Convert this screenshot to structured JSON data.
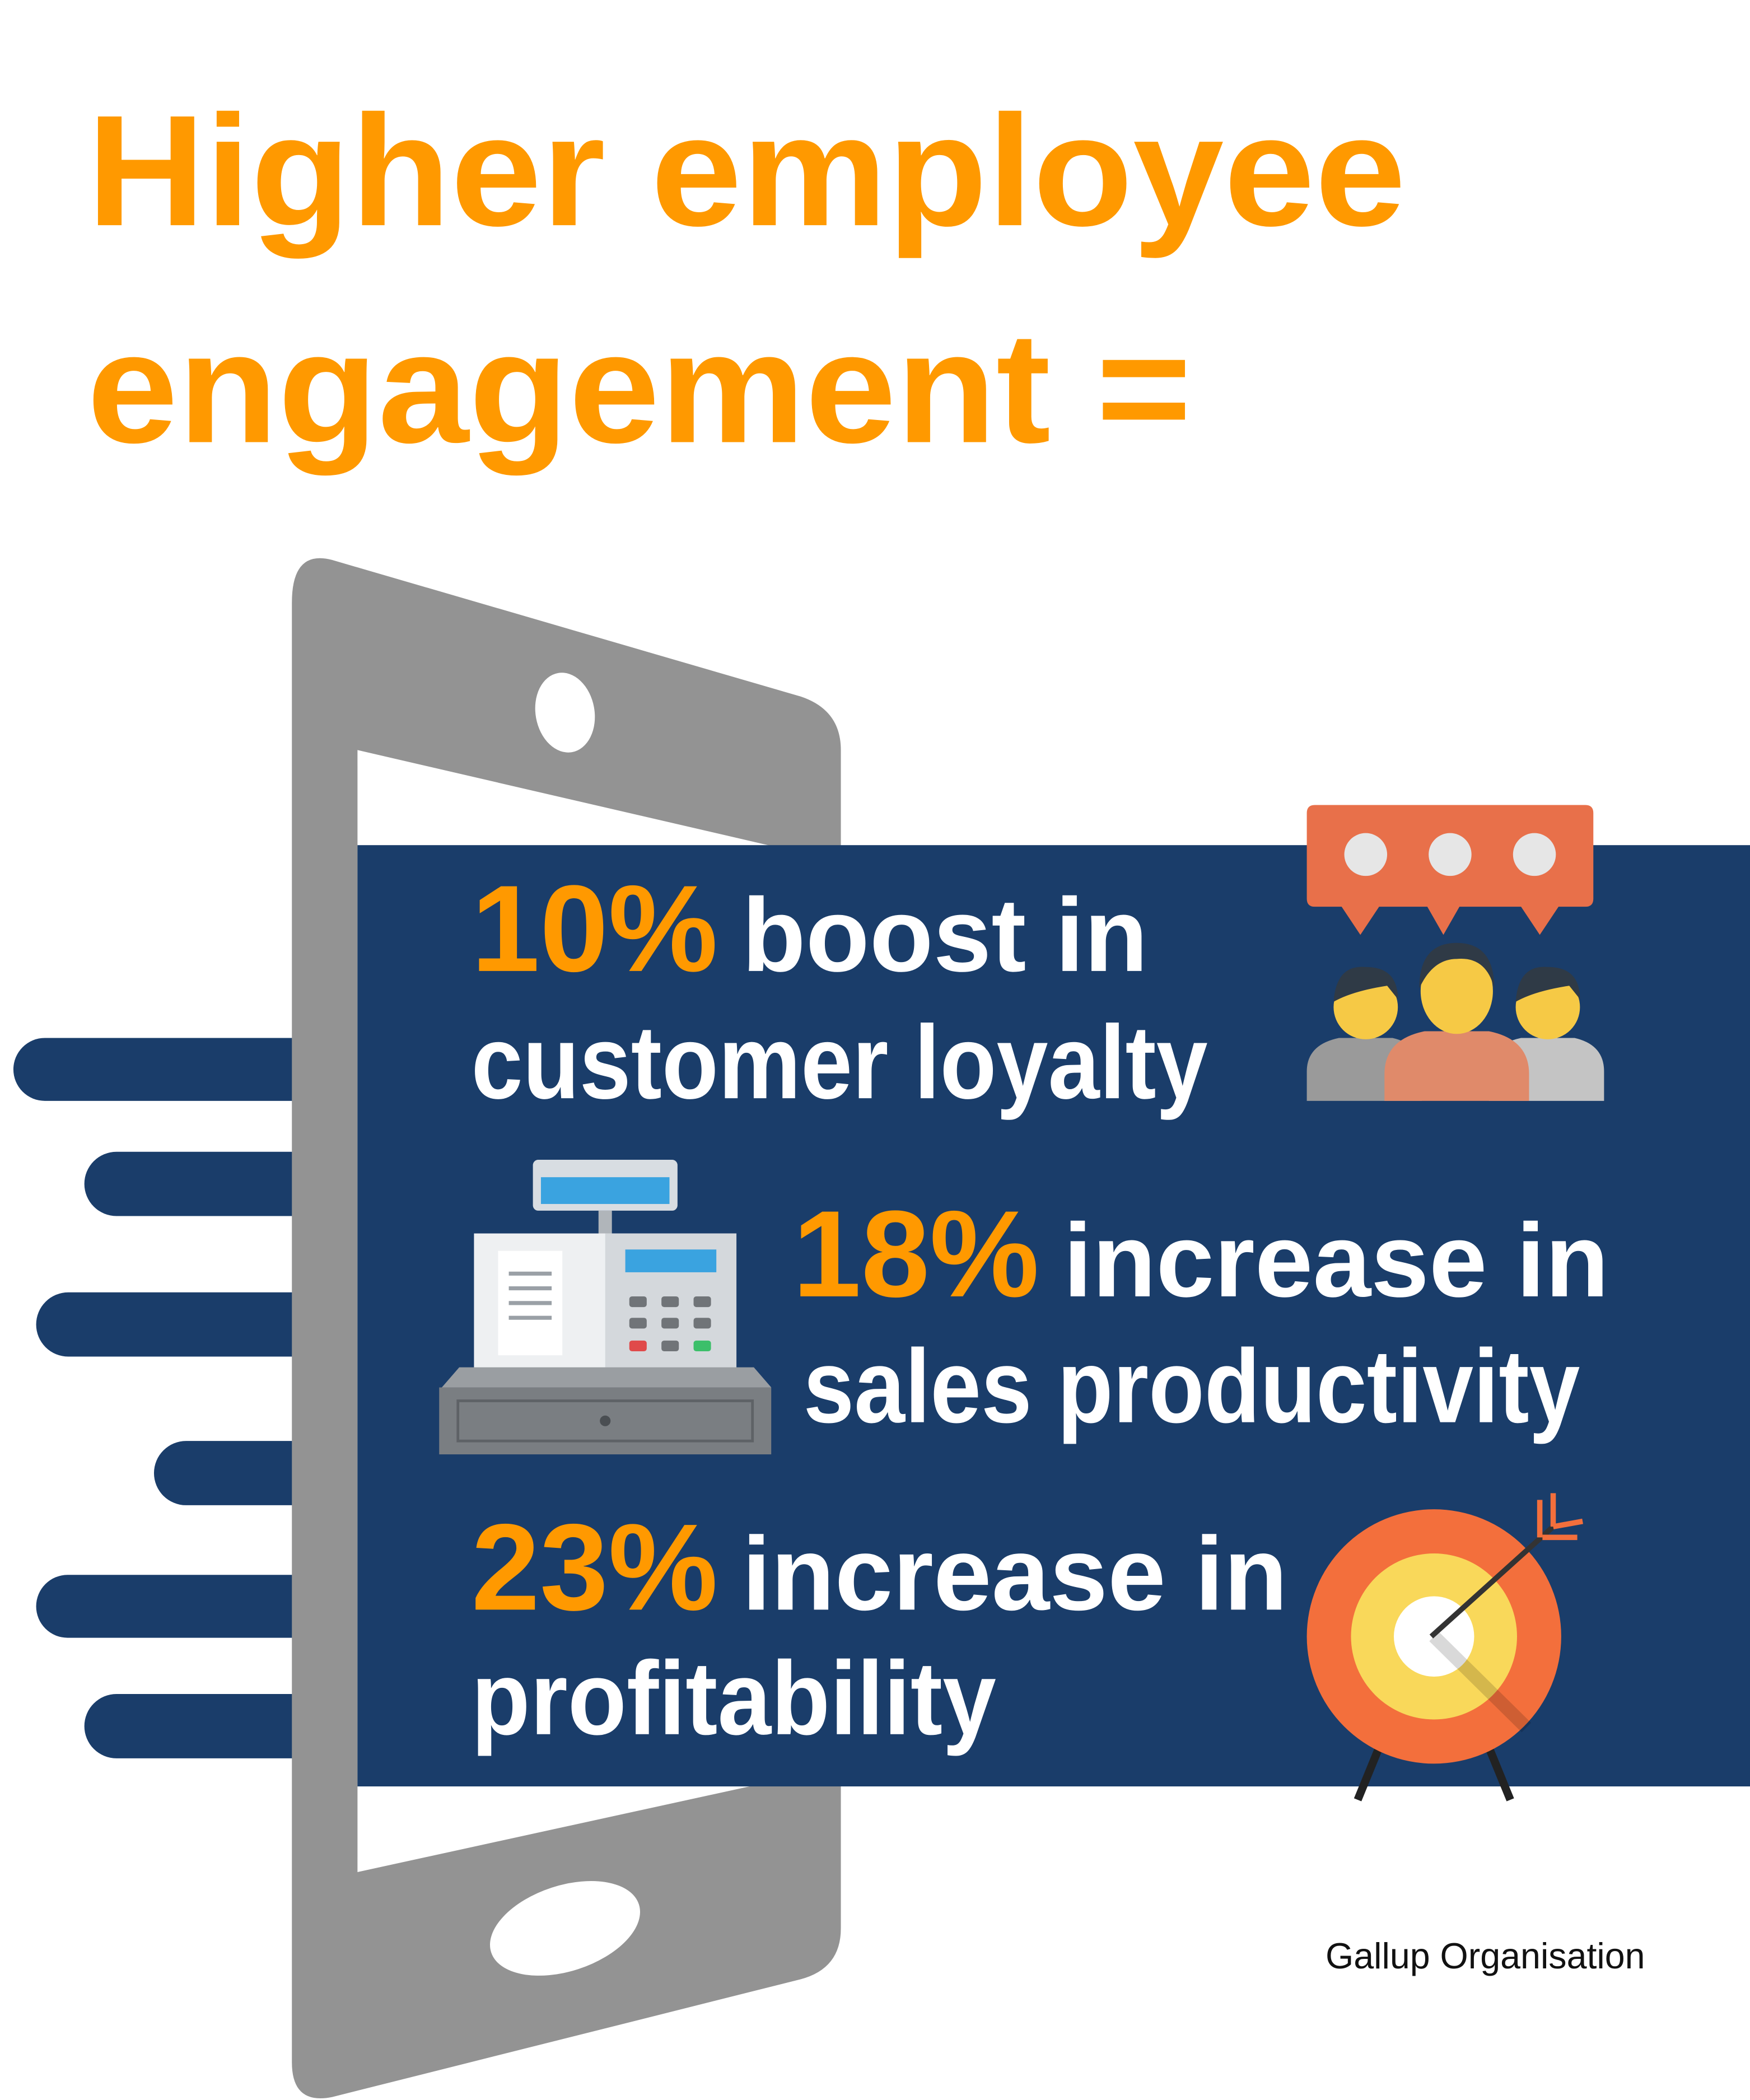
{
  "title": {
    "line1": "Higher employee",
    "line2": "engagement ="
  },
  "stats": [
    {
      "figure": "10%",
      "line1": "boost in",
      "line2": "customer loyalty"
    },
    {
      "figure": "18%",
      "line1": "increase in",
      "line2": "sales productivity"
    },
    {
      "figure": "23%",
      "line1": "increase in",
      "line2": "profitability"
    }
  ],
  "source": "Gallup Organisation"
}
